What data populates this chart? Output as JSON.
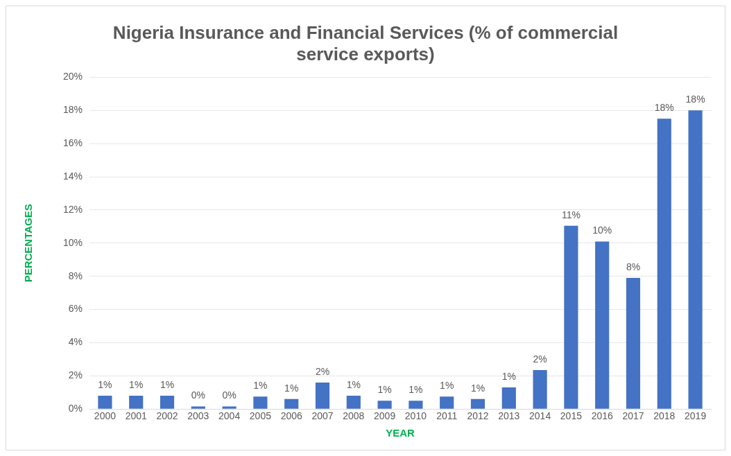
{
  "chart_data": {
    "type": "bar",
    "title": "Nigeria Insurance and Financial Services (% of commercial service exports)",
    "xlabel": "YEAR",
    "ylabel": "PERCENTAGES",
    "categories": [
      "2000",
      "2001",
      "2002",
      "2003",
      "2004",
      "2005",
      "2006",
      "2007",
      "2008",
      "2009",
      "2010",
      "2011",
      "2012",
      "2013",
      "2014",
      "2015",
      "2016",
      "2017",
      "2018",
      "2019"
    ],
    "values": [
      0.8,
      0.8,
      0.8,
      0.15,
      0.15,
      0.75,
      0.6,
      1.6,
      0.8,
      0.5,
      0.5,
      0.75,
      0.6,
      1.3,
      2.35,
      11.05,
      10.1,
      7.9,
      17.5,
      18.0
    ],
    "value_labels": [
      "1%",
      "1%",
      "1%",
      "0%",
      "0%",
      "1%",
      "1%",
      "2%",
      "1%",
      "1%",
      "1%",
      "1%",
      "1%",
      "1%",
      "2%",
      "11%",
      "10%",
      "8%",
      "18%",
      "18%"
    ],
    "color": "#4472c4",
    "ylim": [
      0,
      20
    ],
    "yticks": [
      {
        "value": 0,
        "label": "0%"
      },
      {
        "value": 2,
        "label": "2%"
      },
      {
        "value": 4,
        "label": "4%"
      },
      {
        "value": 6,
        "label": "6%"
      },
      {
        "value": 8,
        "label": "8%"
      },
      {
        "value": 10,
        "label": "10%"
      },
      {
        "value": 12,
        "label": "12%"
      },
      {
        "value": 14,
        "label": "14%"
      },
      {
        "value": 16,
        "label": "16%"
      },
      {
        "value": 18,
        "label": "18%"
      },
      {
        "value": 20,
        "label": "20%"
      }
    ],
    "grid": "y",
    "legend": false
  }
}
